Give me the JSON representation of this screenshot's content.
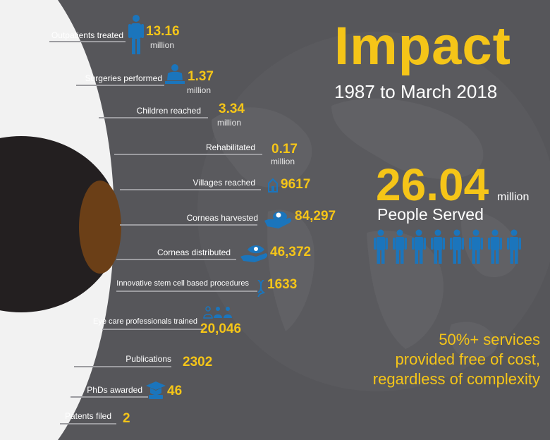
{
  "title": "Impact",
  "subtitle": "1987 to March 2018",
  "colors": {
    "background": "#56565a",
    "accent_yellow": "#f5c518",
    "icon_blue": "#1b75bc",
    "iris_brown": "#6b3f17",
    "sclera": "#f2f2f2"
  },
  "metrics": [
    {
      "label": "Outpatients treated",
      "value": "13.16",
      "unit": "million",
      "icon": "person-icon"
    },
    {
      "label": "Surgeries performed",
      "value": "1.37",
      "unit": "million",
      "icon": "surgeon-icon"
    },
    {
      "label": "Children reached",
      "value": "3.34",
      "unit": "million",
      "icon": ""
    },
    {
      "label": "Rehabilitated",
      "value": "0.17",
      "unit": "million",
      "icon": ""
    },
    {
      "label": "Villages reached",
      "value": "9617",
      "unit": "",
      "icon": "village-icon"
    },
    {
      "label": "Corneas harvested",
      "value": "84,297",
      "unit": "",
      "icon": "cornea-hand-icon"
    },
    {
      "label": "Corneas distributed",
      "value": "46,372",
      "unit": "",
      "icon": "eye-hand-icon"
    },
    {
      "label": "Innovative stem cell based procedures",
      "value": "1633",
      "unit": "",
      "icon": "dna-icon"
    },
    {
      "label": "Eye care professionals trained",
      "value": "20,046",
      "unit": "",
      "icon": "team-icon"
    },
    {
      "label": "Publications",
      "value": "2302",
      "unit": "",
      "icon": ""
    },
    {
      "label": "PhDs awarded",
      "value": "46",
      "unit": "",
      "icon": "graduation-cap-icon"
    },
    {
      "label": "Patents filed",
      "value": "2",
      "unit": "",
      "icon": ""
    }
  ],
  "summary": {
    "number": "26.04",
    "unit": "million",
    "caption": "People Served",
    "people_icons": 8
  },
  "note": {
    "lines": [
      "50%+ services",
      "provided free of cost,",
      "regardless of complexity"
    ]
  }
}
